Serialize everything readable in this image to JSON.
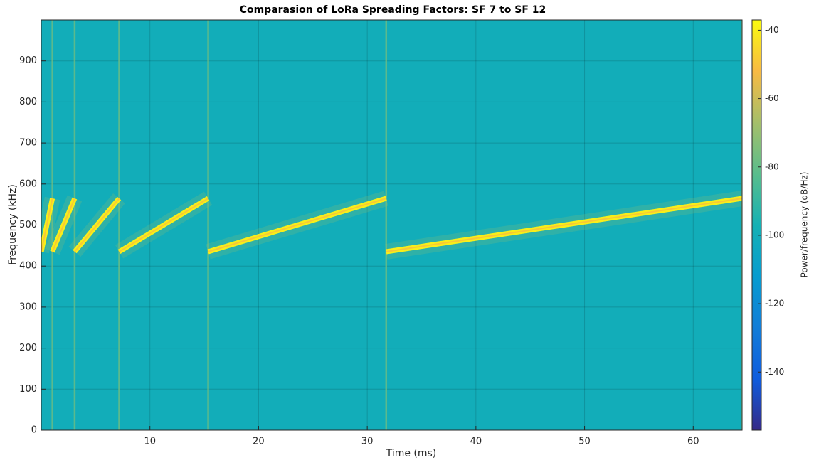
{
  "chart_data": {
    "type": "spectrogram",
    "title": "Comparasion of LoRa Spreading Factors: SF 7 to SF 12",
    "xlabel": "Time (ms)",
    "ylabel": "Frequency (kHz)",
    "xlim": [
      0,
      64.5
    ],
    "xticks": [
      10,
      20,
      30,
      40,
      50,
      60
    ],
    "ylim": [
      0,
      1000
    ],
    "yticks": [
      0,
      100,
      200,
      300,
      400,
      500,
      600,
      700,
      800,
      900
    ],
    "grid": true,
    "noise_power": -100,
    "chirps": [
      {
        "x": [
          0,
          1.024
        ],
        "y": [
          435,
          565
        ],
        "power": -40
      },
      {
        "x": [
          1.024,
          3.072
        ],
        "y": [
          435,
          565
        ],
        "power": -40
      },
      {
        "x": [
          3.072,
          7.168
        ],
        "y": [
          435,
          565
        ],
        "power": -40
      },
      {
        "x": [
          7.168,
          15.36
        ],
        "y": [
          435,
          565
        ],
        "power": -40
      },
      {
        "x": [
          15.36,
          31.744
        ],
        "y": [
          435,
          565
        ],
        "power": -40
      },
      {
        "x": [
          31.744,
          64.512
        ],
        "y": [
          435,
          565
        ],
        "power": -40
      }
    ],
    "colorbar": {
      "label": "Power/frequency (dB/Hz)",
      "lim": [
        -157,
        -37
      ],
      "ticks": [
        -140,
        -120,
        -100,
        -80,
        -60,
        -40
      ]
    }
  }
}
